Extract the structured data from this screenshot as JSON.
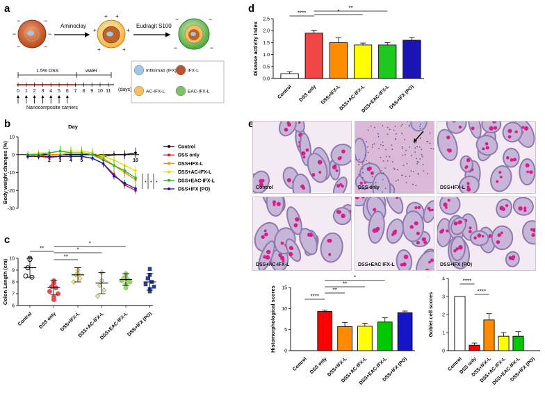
{
  "panels": {
    "a": "a",
    "b": "b",
    "c": "c",
    "d": "d",
    "e": "e"
  },
  "schematic": {
    "step1": "Aminoclay",
    "step2": "Eudragit S100",
    "timeline_dss": "1.5% DSS",
    "timeline_water": "water",
    "days": [
      "0",
      "1",
      "2",
      "3",
      "4",
      "5",
      "6",
      "7",
      "8",
      "9",
      "10",
      "11"
    ],
    "days_unit": "(days)",
    "carriers": "Nanocomposite carriers",
    "legend": [
      {
        "label": "Infliximab (IFX)",
        "color": "#9ec7e8"
      },
      {
        "label": "IFX-L",
        "color": "#c0522a"
      },
      {
        "label": "AC-IFX-L",
        "color": "#f2c064"
      },
      {
        "label": "EAC-IFX-L",
        "color": "#7dc26a"
      }
    ]
  },
  "histology": [
    {
      "label": "Control"
    },
    {
      "label": "DSS only"
    },
    {
      "label": "DSS+IFX-L"
    },
    {
      "label": "DSS+AC-IFX-L"
    },
    {
      "label": "DSS+EAC IFX-L"
    },
    {
      "label": "DSS+IFX (PO)"
    }
  ],
  "chart_data": [
    {
      "id": "b",
      "type": "line",
      "title": "Day",
      "ylabel": "Body weight changes (%)",
      "ylim": [
        -30,
        10
      ],
      "yticks": [
        10,
        0,
        -10,
        -20,
        -30
      ],
      "x": [
        0,
        1,
        2,
        3,
        4,
        5,
        6,
        7,
        8,
        9,
        10
      ],
      "xticklabels": [
        "2",
        "3",
        "4",
        "5",
        "10"
      ],
      "series": [
        {
          "name": "Control",
          "color": "#111111",
          "values": [
            0,
            0,
            0,
            0,
            0,
            0,
            0,
            -1,
            0,
            0,
            1
          ],
          "err": [
            1.5,
            1.5,
            1.5,
            1.5,
            1.5,
            1.5,
            1.5,
            2,
            2,
            2.5,
            3
          ]
        },
        {
          "name": "DSS only",
          "color": "#e02020",
          "values": [
            -1,
            -1,
            -1.5,
            -1,
            -1,
            -1,
            -2,
            -5,
            -11,
            -17,
            -20
          ],
          "err": [
            1.5,
            1.5,
            1.5,
            1.5,
            1.5,
            1.5,
            1.5,
            2,
            2,
            2,
            2
          ]
        },
        {
          "name": "DSS+IFX-L",
          "color": "#ff8c00",
          "values": [
            0,
            -1,
            0,
            0,
            1,
            1,
            0,
            -2,
            -6,
            -10,
            -14
          ],
          "err": [
            2,
            2,
            2,
            3,
            3,
            3,
            2,
            3,
            3,
            3,
            3
          ]
        },
        {
          "name": "DSS+AC-IFX-L",
          "color": "#e8e000",
          "values": [
            0,
            1,
            1,
            2,
            2,
            2,
            1,
            -1,
            -3,
            -6,
            -9
          ],
          "err": [
            2,
            2,
            2,
            3,
            3,
            3,
            3,
            3,
            3,
            3,
            3
          ]
        },
        {
          "name": "DSS+EAC-IFX-L",
          "color": "#22bb22",
          "values": [
            0,
            0,
            1,
            2,
            1,
            1,
            0,
            -3,
            -6,
            -9,
            -13
          ],
          "err": [
            2,
            2,
            2,
            3,
            3,
            3,
            3,
            3,
            3,
            3,
            3
          ]
        },
        {
          "name": "DSS+IFX (PO)",
          "color": "#1a1aa8",
          "values": [
            -1,
            -1,
            -1,
            -1,
            -1,
            -1,
            -2,
            -5,
            -12,
            -16,
            -19
          ],
          "err": [
            1.5,
            1.5,
            1.5,
            1.5,
            1.5,
            1.5,
            1.5,
            2,
            2,
            2,
            2
          ]
        }
      ],
      "significance": [
        "*",
        "*",
        "*"
      ]
    },
    {
      "id": "c",
      "type": "scatter",
      "ylabel": "Colon Length (cm)",
      "ylim": [
        6,
        10
      ],
      "yticks": [
        6,
        7,
        8,
        9,
        10
      ],
      "categories": [
        "Control",
        "DSS only",
        "DSS+IFX-L",
        "DSS+AC-IFX-L",
        "DSS+EAC-IFX-L",
        "DSS+IFX (PO)"
      ],
      "colors": [
        "#ffffff",
        "#e94b4b",
        "#fcef7a",
        "#e9e0a2",
        "#98d26a",
        "#27409b"
      ],
      "means": [
        9.2,
        7.5,
        8.6,
        7.9,
        8.2,
        8.0
      ],
      "sd": [
        0.8,
        0.6,
        0.6,
        0.9,
        0.5,
        0.7
      ],
      "points": [
        [
          10.0,
          9.9,
          9.2,
          8.4,
          8.5
        ],
        [
          8.1,
          7.9,
          7.6,
          7.5,
          7.2,
          7.0,
          6.7,
          6.5
        ],
        [
          9.0,
          8.7,
          8.6,
          8.3,
          8.0
        ],
        [
          8.8,
          8.1,
          7.7,
          7.3,
          6.8
        ],
        [
          8.7,
          8.5,
          8.3,
          8.2,
          8.1,
          8.0,
          7.8,
          7.5
        ],
        [
          9.1,
          8.6,
          8.3,
          8.0,
          7.8,
          7.6,
          7.4,
          7.2
        ]
      ],
      "significance": [
        {
          "from": 0,
          "to": 1,
          "label": "**"
        },
        {
          "from": 1,
          "to": 2,
          "label": "**"
        },
        {
          "from": 1,
          "to": 3,
          "label": "*"
        },
        {
          "from": 1,
          "to": 4,
          "label": "*"
        }
      ]
    },
    {
      "id": "d",
      "type": "bar",
      "ylabel": "Disease activity index",
      "ylim": [
        0,
        2.5
      ],
      "yticks": [
        0,
        0.5,
        1.0,
        1.5,
        2.0,
        2.5
      ],
      "categories": [
        "Control",
        "DSS only",
        "DSS+IFX-L",
        "DSS+AC-IFX-L",
        "DSS+EAC-IFX-L",
        "DSS+IFX (PO)"
      ],
      "colors": [
        "#ffffff",
        "#f04646",
        "#ff8c00",
        "#ffff00",
        "#1ec81e",
        "#1a14b4"
      ],
      "values": [
        0.2,
        1.9,
        1.5,
        1.4,
        1.4,
        1.6
      ],
      "err": [
        0.08,
        0.12,
        0.2,
        0.08,
        0.1,
        0.12
      ],
      "significance": [
        {
          "from": 0,
          "to": 1,
          "label": "****"
        },
        {
          "from": 1,
          "to": 3,
          "label": "*"
        },
        {
          "from": 1,
          "to": 4,
          "label": "**"
        }
      ]
    },
    {
      "id": "e1",
      "type": "bar",
      "ylabel": "Histomorphological scores",
      "ylim": [
        0,
        15
      ],
      "yticks": [
        0,
        5,
        10,
        15
      ],
      "categories": [
        "Control",
        "DSS only",
        "DSS+IFX-L",
        "DSS+AC-IFX-L",
        "DSS+EAC-IFX-L",
        "DSS+IFX (PO)"
      ],
      "colors": [
        "#ffffff",
        "#ff0000",
        "#ff8c00",
        "#ffff00",
        "#00c800",
        "#1414c8"
      ],
      "values": [
        0,
        9.3,
        5.7,
        5.8,
        6.8,
        9.0
      ],
      "err": [
        0,
        0.3,
        1.0,
        0.7,
        1.0,
        0.4
      ],
      "significance": [
        {
          "from": 0,
          "to": 1,
          "label": "****"
        },
        {
          "from": 1,
          "to": 2,
          "label": "**"
        },
        {
          "from": 1,
          "to": 3,
          "label": "**"
        },
        {
          "from": 1,
          "to": 4,
          "label": "*"
        }
      ]
    },
    {
      "id": "e2",
      "type": "bar",
      "ylabel": "Goblet cell scores",
      "ylim": [
        0,
        4
      ],
      "yticks": [
        0,
        1,
        2,
        3,
        4
      ],
      "categories": [
        "Control",
        "DSS only",
        "DSS+IFX-L",
        "DSS+AC-IFX-L",
        "DSS+EAC-IFX-L",
        "DSS+IFX (PO)"
      ],
      "colors": [
        "#ffffff",
        "#ff0000",
        "#ff8c00",
        "#ffff00",
        "#00c800",
        "#1414c8"
      ],
      "values": [
        3.0,
        0.3,
        1.7,
        0.8,
        0.8,
        0
      ],
      "err": [
        0,
        0.12,
        0.35,
        0.2,
        0.25,
        0
      ],
      "significance": [
        {
          "from": 0,
          "to": 1,
          "label": "****"
        },
        {
          "from": 1,
          "to": 2,
          "label": "****"
        }
      ]
    }
  ]
}
